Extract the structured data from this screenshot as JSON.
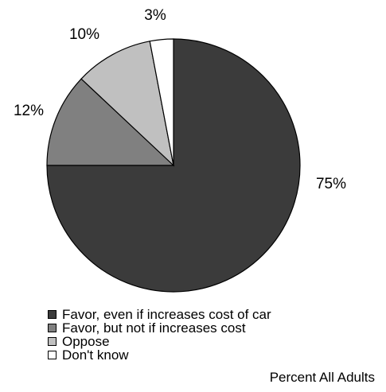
{
  "chart_data": {
    "type": "pie",
    "categories": [
      "Favor, even if increases cost of car",
      "Favor, but not if increases cost",
      "Oppose",
      "Don't know"
    ],
    "values": [
      75,
      12,
      10,
      3
    ],
    "value_labels": [
      "75%",
      "12%",
      "10%",
      "3%"
    ],
    "colors": [
      "#3b3b3b",
      "#808080",
      "#c0c0c0",
      "#ffffff"
    ],
    "footer": "Percent All Adults",
    "legend_position": "bottom-left"
  }
}
